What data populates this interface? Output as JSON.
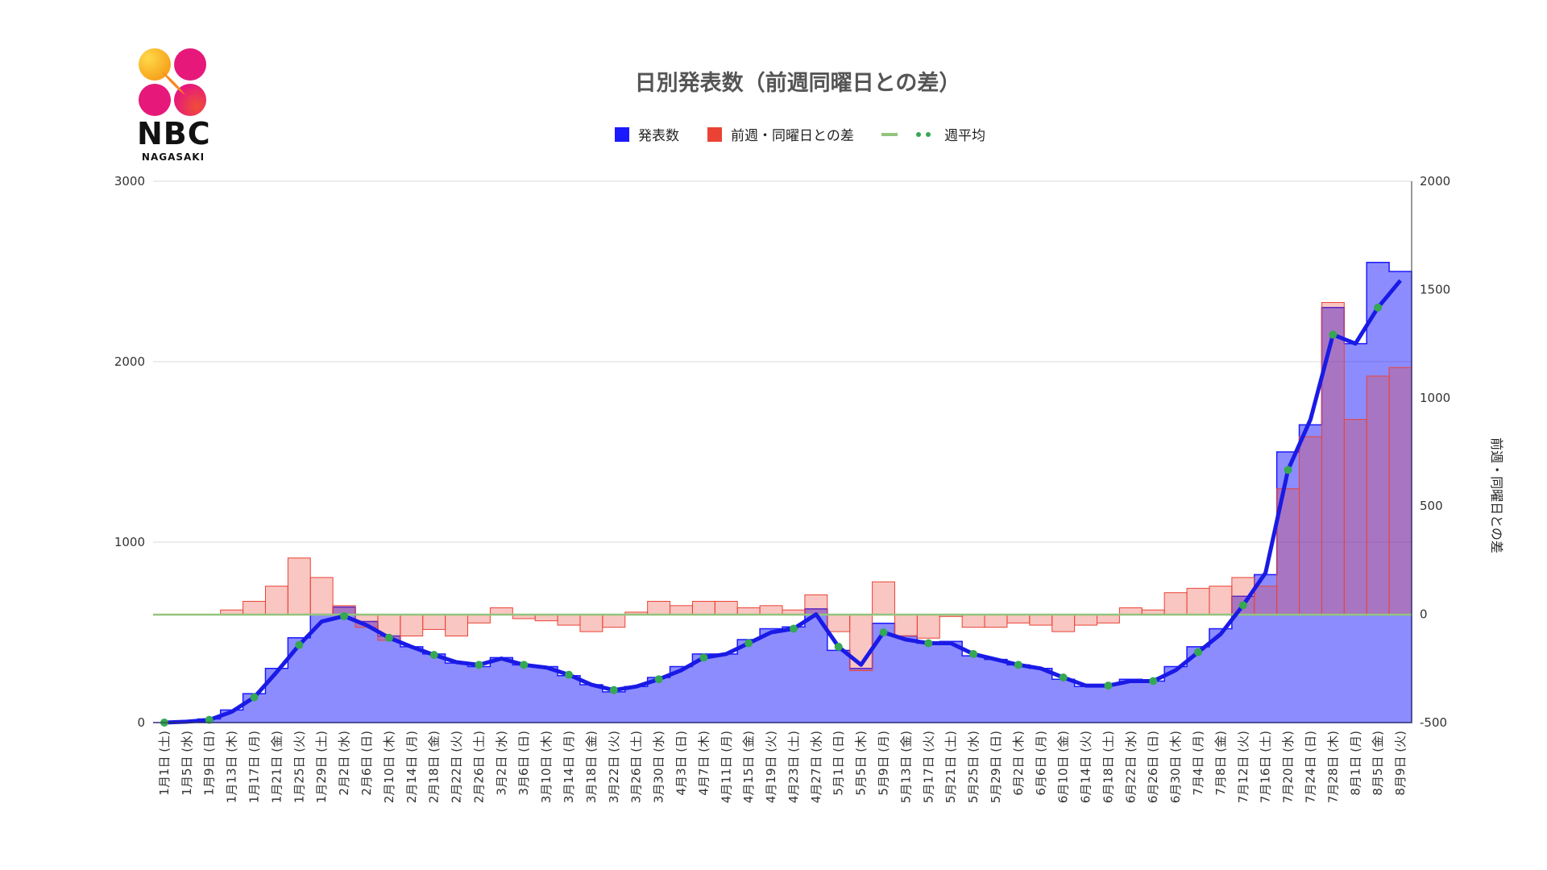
{
  "logo": {
    "name": "NBC",
    "sub": "NAGASAKI"
  },
  "chart_data": {
    "type": "bar",
    "title": "日別発表数（前週同曜日との差）",
    "legend_position": "top",
    "grid": true,
    "y_left": {
      "range": [
        0,
        3000
      ],
      "ticks": [
        "0",
        "1000",
        "2000",
        "3000"
      ]
    },
    "y_right": {
      "label": "前週・同曜日との差",
      "range": [
        -500,
        2000
      ],
      "ticks": [
        "-500",
        "0",
        "500",
        "1000",
        "1500",
        "2000"
      ]
    },
    "x_labels": [
      "1月1日 (土)",
      "1月5日 (水)",
      "1月9日 (日)",
      "1月13日 (木)",
      "1月17日 (月)",
      "1月21日 (金)",
      "1月25日 (火)",
      "1月29日 (土)",
      "2月2日 (水)",
      "2月6日 (日)",
      "2月10日 (木)",
      "2月14日 (月)",
      "2月18日 (金)",
      "2月22日 (火)",
      "2月26日 (土)",
      "3月2日 (水)",
      "3月6日 (日)",
      "3月10日 (木)",
      "3月14日 (月)",
      "3月18日 (金)",
      "3月22日 (火)",
      "3月26日 (土)",
      "3月30日 (水)",
      "4月3日 (日)",
      "4月7日 (木)",
      "4月11日 (月)",
      "4月15日 (金)",
      "4月19日 (火)",
      "4月23日 (土)",
      "4月27日 (水)",
      "5月1日 (日)",
      "5月5日 (木)",
      "5月9日 (月)",
      "5月13日 (金)",
      "5月17日 (火)",
      "5月21日 (土)",
      "5月25日 (水)",
      "5月29日 (日)",
      "6月2日 (木)",
      "6月6日 (月)",
      "6月10日 (金)",
      "6月14日 (火)",
      "6月18日 (土)",
      "6月22日 (水)",
      "6月26日 (日)",
      "6月30日 (木)",
      "7月4日 (月)",
      "7月8日 (金)",
      "7月12日 (火)",
      "7月16日 (土)",
      "7月20日 (水)",
      "7月24日 (日)",
      "7月28日 (木)",
      "8月1日 (月)",
      "8月5日 (金)",
      "8月9日 (火)"
    ],
    "series": [
      {
        "name": "発表数",
        "color": "#1a1aff",
        "axis": "left",
        "values": [
          0,
          8,
          20,
          70,
          160,
          300,
          470,
          600,
          640,
          560,
          480,
          420,
          380,
          330,
          310,
          360,
          320,
          310,
          260,
          210,
          170,
          200,
          250,
          310,
          380,
          380,
          460,
          520,
          530,
          630,
          400,
          300,
          550,
          480,
          440,
          450,
          370,
          350,
          320,
          300,
          240,
          200,
          210,
          240,
          230,
          310,
          420,
          520,
          700,
          820,
          1500,
          1650,
          2300,
          2100,
          2550,
          2500
        ]
      },
      {
        "name": "前週・同曜日との差",
        "color": "#ea4335",
        "axis": "right",
        "values": [
          null,
          null,
          null,
          20,
          60,
          130,
          260,
          170,
          40,
          -60,
          -120,
          -100,
          -70,
          -100,
          -40,
          30,
          -20,
          -30,
          -50,
          -80,
          -60,
          10,
          60,
          40,
          60,
          60,
          30,
          40,
          20,
          90,
          -80,
          -260,
          150,
          -100,
          -110,
          -10,
          -60,
          -60,
          -40,
          -50,
          -80,
          -50,
          -40,
          30,
          20,
          100,
          120,
          130,
          170,
          130,
          580,
          820,
          1440,
          900,
          1100,
          1140
        ]
      },
      {
        "name": "週平均",
        "color": "#1a1ae6",
        "axis": "left",
        "values": [
          0,
          5,
          15,
          60,
          140,
          280,
          430,
          560,
          590,
          540,
          470,
          420,
          375,
          335,
          320,
          355,
          320,
          305,
          265,
          210,
          180,
          200,
          240,
          290,
          360,
          380,
          440,
          500,
          520,
          600,
          420,
          320,
          500,
          460,
          440,
          440,
          380,
          350,
          320,
          300,
          250,
          205,
          205,
          230,
          230,
          290,
          390,
          490,
          650,
          830,
          1400,
          1680,
          2150,
          2100,
          2300,
          2450
        ]
      }
    ],
    "extra_legend": [
      {
        "name": "",
        "color": "#93c47d"
      },
      {
        "name": "週平均",
        "color": "#34a853"
      }
    ]
  }
}
